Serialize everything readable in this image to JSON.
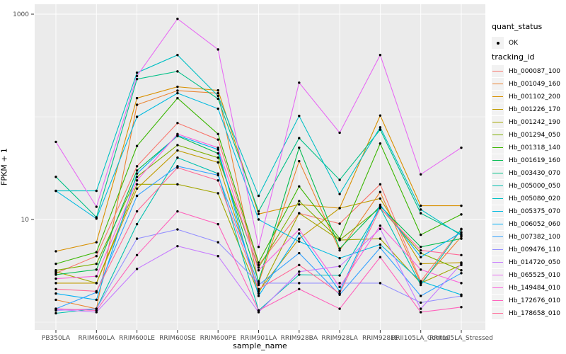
{
  "figure": {
    "background": "#FFFFFF",
    "panel_background": "#EBEBEB",
    "grid_color": "#FFFFFF",
    "legend_key_background": "#F2F2F2",
    "point_color": "#000000",
    "tick_label_color": "#4D4D4D",
    "tick_mark_color": "#333333"
  },
  "legend": {
    "quant_status_title": "quant_status",
    "quant_status_entries": [
      {
        "label": "OK",
        "symbol": "point"
      }
    ],
    "tracking_id_title": "tracking_id"
  },
  "chart_data": {
    "type": "line",
    "title": "",
    "xlabel": "sample_name",
    "ylabel": "FPKM + 1",
    "legend_position": "right",
    "grid": true,
    "x_axis": {
      "label": "sample_name",
      "categories": [
        "PB350LA",
        "RRIM600LA",
        "RRIM600LE",
        "RRIM600SE",
        "RRIM600PE",
        "RRIM901LA",
        "RRIM928BA",
        "RRIM928LA",
        "RRIM928LE",
        "RRII105LA_Control",
        "RRII105LA_Stressed"
      ]
    },
    "y_axis": {
      "label": "FPKM + 1",
      "scale": "log10",
      "ticks": [
        1000,
        10
      ],
      "minor_ticks": [
        100,
        1
      ],
      "range": [
        0.9,
        1300
      ]
    },
    "series": [
      {
        "name": "Hb_000087_100",
        "color": "#F8766D",
        "values": [
          3.0,
          4.4,
          33,
          87,
          60,
          3.6,
          11.5,
          9.1,
          22,
          2.5,
          8.1
        ]
      },
      {
        "name": "Hb_001049_160",
        "color": "#EA8331",
        "values": [
          1.65,
          1.35,
          131,
          180,
          170,
          2.4,
          37,
          5.0,
          18.5,
          2.4,
          6.8
        ]
      },
      {
        "name": "Hb_001102_200",
        "color": "#D89000",
        "values": [
          4.9,
          6.0,
          152,
          196,
          181,
          11.3,
          14,
          12.9,
          103,
          13.6,
          13.6
        ]
      },
      {
        "name": "Hb_001226_170",
        "color": "#C09B00",
        "values": [
          2.4,
          2.4,
          20,
          47,
          36,
          2.0,
          6.5,
          12.9,
          16,
          3.7,
          3.8
        ]
      },
      {
        "name": "Hb_001242_190",
        "color": "#A3A500",
        "values": [
          3.1,
          2.4,
          22,
          22,
          18,
          1.9,
          11.5,
          6.3,
          6.5,
          2.4,
          3.6
        ]
      },
      {
        "name": "Hb_001294_050",
        "color": "#7CAE00",
        "values": [
          3.2,
          3.7,
          26,
          53,
          40,
          3.4,
          15.1,
          6.3,
          13,
          4.7,
          3.2
        ]
      },
      {
        "name": "Hb_001318_140",
        "color": "#39B600",
        "values": [
          3.7,
          4.8,
          52,
          152,
          68,
          3.8,
          21,
          6.5,
          55,
          7.1,
          11.2
        ]
      },
      {
        "name": "Hb_001619_160",
        "color": "#00BB4E",
        "values": [
          2.9,
          3.25,
          30,
          65,
          44,
          2.5,
          50,
          5.2,
          13.5,
          5.4,
          6.5
        ]
      },
      {
        "name": "Hb_003430_070",
        "color": "#00C087",
        "values": [
          26,
          10.5,
          233,
          277,
          150,
          12,
          62,
          24.3,
          75,
          11.5,
          7.2
        ]
      },
      {
        "name": "Hb_005000_050",
        "color": "#00C0AF",
        "values": [
          1.22,
          1.35,
          9,
          40,
          28,
          1.3,
          2.9,
          2.85,
          13,
          2.3,
          8.0
        ]
      },
      {
        "name": "Hb_005080_020",
        "color": "#00BFC4",
        "values": [
          19,
          19,
          269,
          400,
          160,
          17,
          102,
          17.7,
          79,
          12.5,
          7.0
        ]
      },
      {
        "name": "Hb_005375_070",
        "color": "#00BAE0",
        "values": [
          19,
          10.2,
          100,
          170,
          120,
          10,
          6.1,
          4.2,
          5.7,
          2.5,
          1.85
        ]
      },
      {
        "name": "Hb_006052_060",
        "color": "#00B0F6",
        "values": [
          1.9,
          1.65,
          28,
          66,
          48,
          1.8,
          7.3,
          2.0,
          13.9,
          4.3,
          7.5
        ]
      },
      {
        "name": "Hb_007382_100",
        "color": "#35A2FF",
        "values": [
          1.35,
          1.95,
          17,
          33,
          27,
          2.3,
          4.7,
          1.85,
          5.3,
          1.8,
          3.0
        ]
      },
      {
        "name": "Hb_009476_110",
        "color": "#9590FF",
        "values": [
          1.3,
          1.35,
          6.5,
          8,
          6,
          2.4,
          2.4,
          2.4,
          2.4,
          1.55,
          1.8
        ]
      },
      {
        "name": "Hb_014720_050",
        "color": "#C77CFF",
        "values": [
          1.33,
          1.25,
          3.3,
          5.5,
          4.4,
          1.25,
          3.1,
          3.5,
          8.1,
          1.35,
          3.7
        ]
      },
      {
        "name": "Hb_065525_010",
        "color": "#E76BF3",
        "values": [
          57,
          13.3,
          250,
          900,
          453,
          5.4,
          215,
          70,
          400,
          27.5,
          50
        ]
      },
      {
        "name": "Hb_149484_010",
        "color": "#FA62DB",
        "values": [
          2.65,
          2.8,
          24,
          68,
          50,
          3.2,
          8,
          2.2,
          8.7,
          3.25,
          2.4
        ]
      },
      {
        "name": "Hb_172676_010",
        "color": "#FF62BC",
        "values": [
          1.35,
          1.3,
          4.5,
          12,
          9,
          1.3,
          2.1,
          1.35,
          4.3,
          1.25,
          1.4
        ]
      },
      {
        "name": "Hb_178658_010",
        "color": "#FF6A98",
        "values": [
          2.1,
          2.0,
          12,
          32,
          24,
          2.1,
          3.6,
          1.9,
          12.9,
          5.0,
          4.5
        ]
      }
    ]
  }
}
